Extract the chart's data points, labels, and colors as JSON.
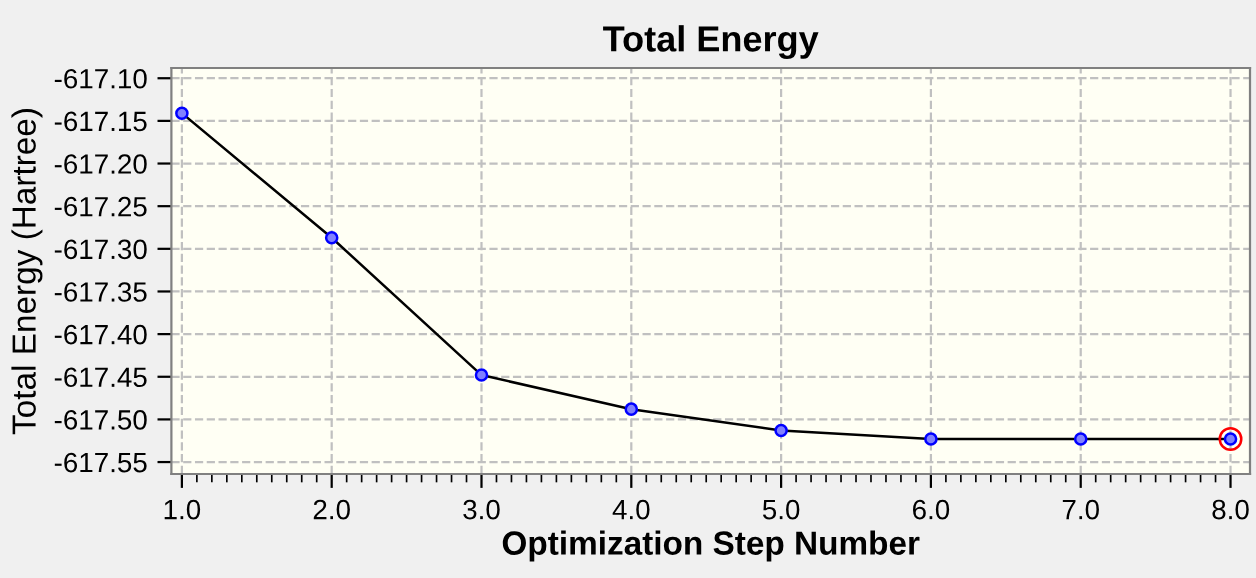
{
  "chart_data": {
    "type": "line",
    "title": "Total Energy",
    "xlabel": "Optimization Step Number",
    "ylabel": "Total Energy (Hartree)",
    "x": [
      1,
      2,
      3,
      4,
      5,
      6,
      7,
      8
    ],
    "series": [
      {
        "color": "#000000",
        "values": [
          -617.141,
          -617.287,
          -617.448,
          -617.488,
          -617.513,
          -617.523,
          -617.523,
          -617.523
        ]
      },
      {
        "type": "scatter",
        "color": "#ff0000",
        "x": [
          8
        ],
        "values": [
          -617.523
        ]
      }
    ],
    "xlim": [
      0.93,
      8.13
    ],
    "xticks": [
      {
        "value": 1,
        "label": "1.0"
      },
      {
        "value": 2,
        "label": "2.0"
      },
      {
        "value": 3,
        "label": "3.0"
      },
      {
        "value": 4,
        "label": "4.0"
      },
      {
        "value": 5,
        "label": "5.0"
      },
      {
        "value": 6,
        "label": "6.0"
      },
      {
        "value": 7,
        "label": "7.0"
      },
      {
        "value": 8,
        "label": "8.0"
      }
    ],
    "ylim": [
      -617.564,
      -617.088
    ],
    "yticks": [
      {
        "value": -617.55,
        "label": "-617.55"
      },
      {
        "value": -617.5,
        "label": "-617.50"
      },
      {
        "value": -617.45,
        "label": "-617.45"
      },
      {
        "value": -617.4,
        "label": "-617.40"
      },
      {
        "value": -617.35,
        "label": "-617.35"
      },
      {
        "value": -617.3,
        "label": "-617.30"
      },
      {
        "value": -617.25,
        "label": "-617.25"
      },
      {
        "value": -617.2,
        "label": "-617.20"
      },
      {
        "value": -617.15,
        "label": "-617.15"
      },
      {
        "value": -617.1,
        "label": "-617.10"
      }
    ],
    "grid": true,
    "marker": "circle",
    "line_style": "solid",
    "legend": false
  }
}
